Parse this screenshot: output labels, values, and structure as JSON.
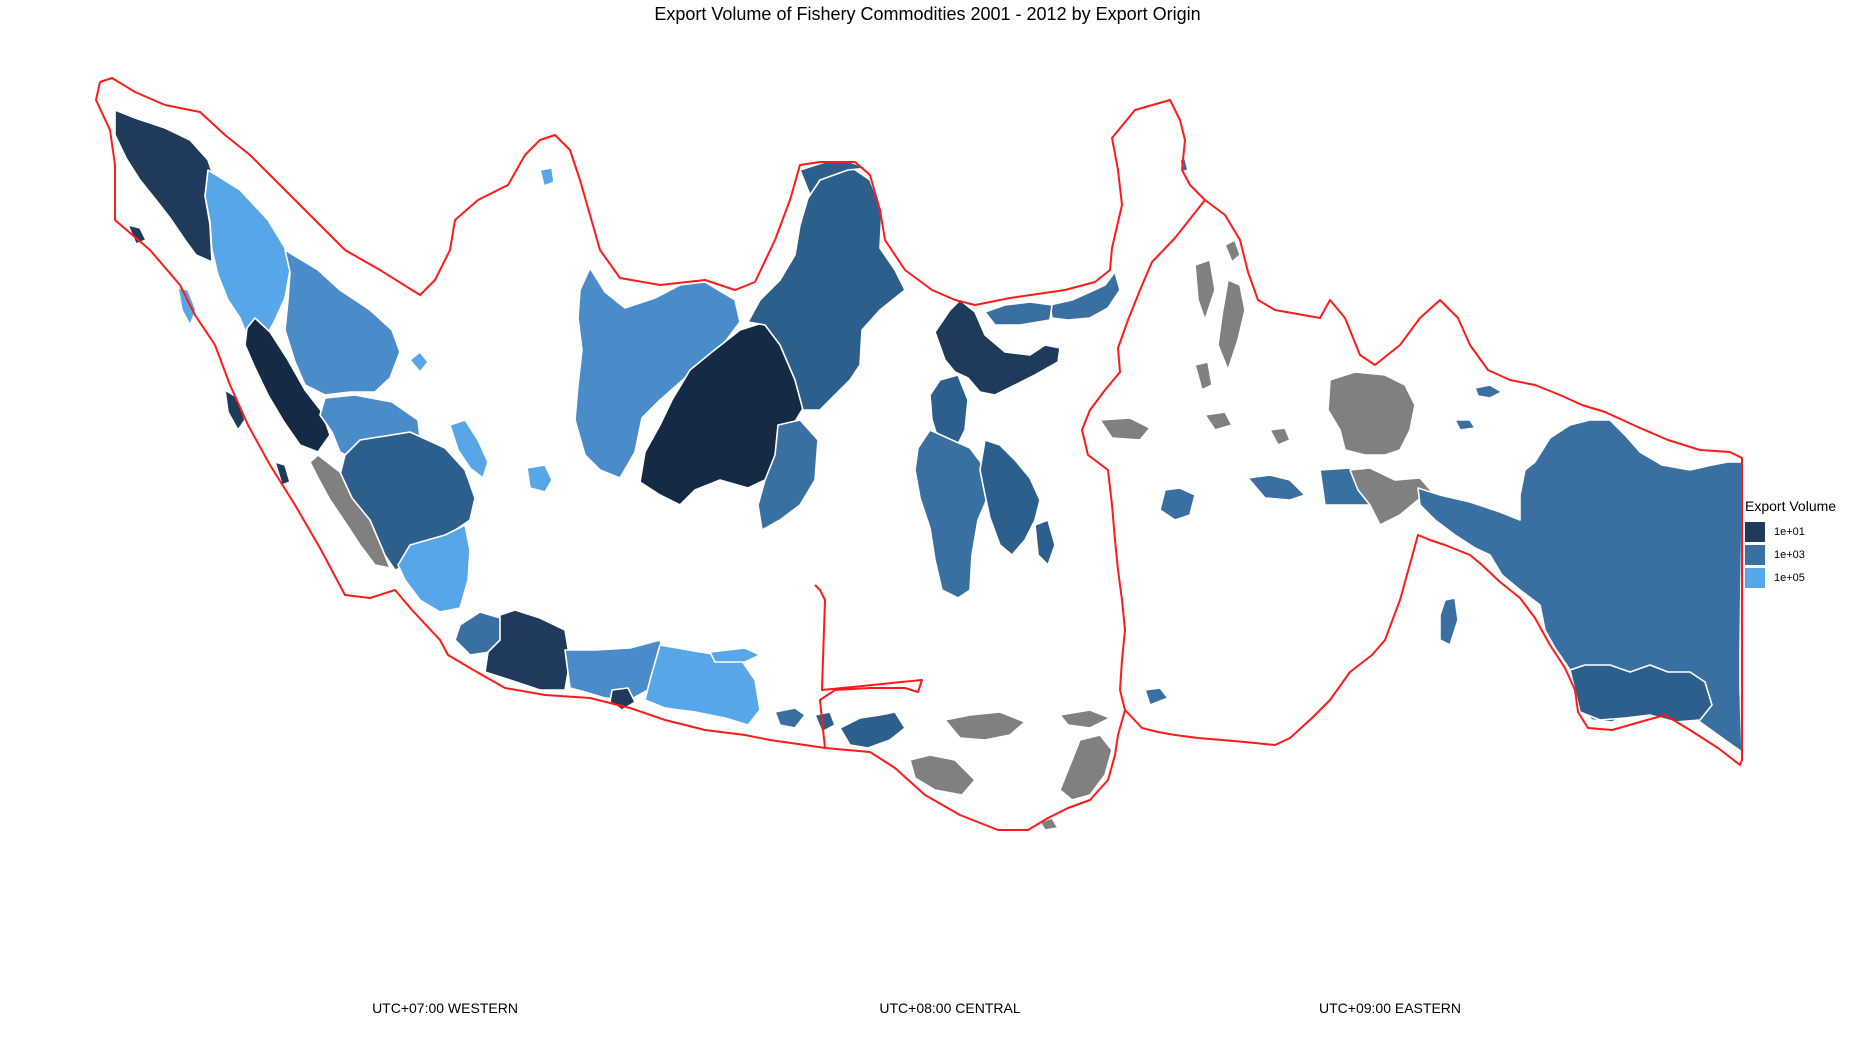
{
  "title": "Export Volume of Fishery Commodities 2001 - 2012 by Export Origin",
  "legend": {
    "title": "Export Volume",
    "items": [
      {
        "label": "1e+01",
        "color": "#1f3a5a"
      },
      {
        "label": "1e+03",
        "color": "#3a6fa2"
      },
      {
        "label": "1e+05",
        "color": "#56a6e8"
      }
    ]
  },
  "colors": {
    "darkest": "#142a45",
    "dark": "#1f3a5a",
    "medium_dark": "#2d5f8c",
    "medium": "#3a6fa2",
    "light_medium": "#4a8cc9",
    "light": "#56a6e8",
    "no_data": "#808080",
    "zone_border": "#ff1a1a"
  },
  "zones": [
    {
      "label": "UTC+07:00 WESTERN"
    },
    {
      "label": "UTC+08:00 CENTRAL"
    },
    {
      "label": "UTC+09:00 EASTERN"
    }
  ]
}
